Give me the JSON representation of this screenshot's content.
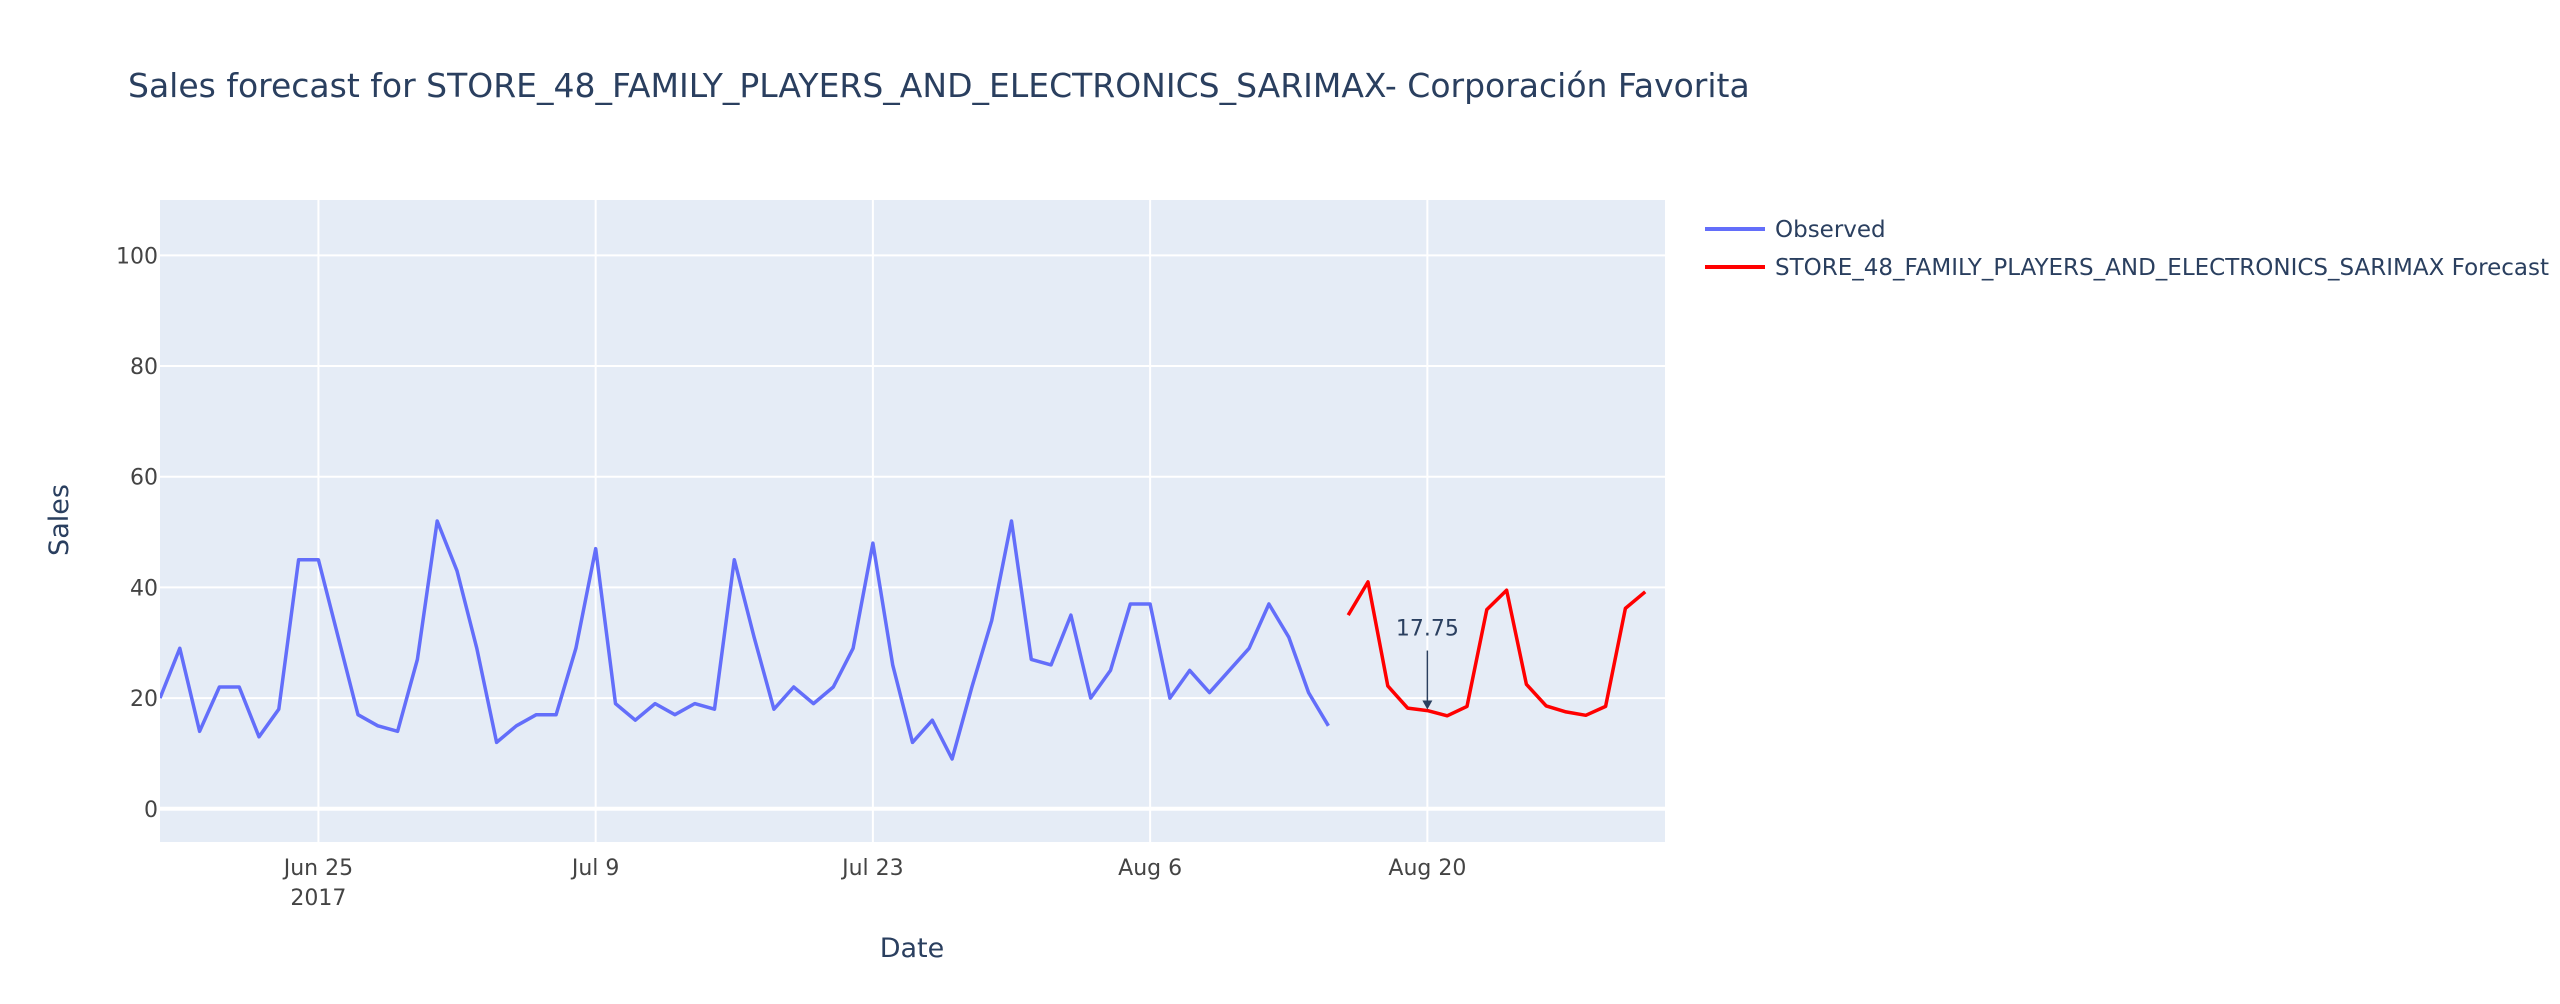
{
  "chart_data": {
    "type": "line",
    "title": "Sales forecast for STORE_48_FAMILY_PLAYERS_AND_ELECTRONICS_SARIMAX- Corporación Favorita",
    "xlabel": "Date",
    "ylabel": "Sales",
    "xlim": [
      "2017-06-17",
      "2017-09-01"
    ],
    "ylim": [
      -6,
      110
    ],
    "x_ticks": [
      {
        "date": "2017-06-25",
        "label": "Jun 25",
        "sublabel": "2017"
      },
      {
        "date": "2017-07-09",
        "label": "Jul 9",
        "sublabel": ""
      },
      {
        "date": "2017-07-23",
        "label": "Jul 23",
        "sublabel": ""
      },
      {
        "date": "2017-08-06",
        "label": "Aug 6",
        "sublabel": ""
      },
      {
        "date": "2017-08-20",
        "label": "Aug 20",
        "sublabel": ""
      }
    ],
    "y_ticks": [
      0,
      20,
      40,
      60,
      80,
      100
    ],
    "grid": true,
    "legend_position": "right",
    "plot_background": "#e5ecf6",
    "series": [
      {
        "name": "Observed",
        "color": "#636efa",
        "start_date": "2017-06-17",
        "values": [
          20,
          29,
          14,
          22,
          22,
          13,
          18,
          45,
          45,
          31,
          17,
          15,
          14,
          27,
          52,
          43,
          29,
          12,
          15,
          17,
          17,
          29,
          47,
          19,
          16,
          19,
          17,
          19,
          18,
          45,
          31,
          18,
          22,
          19,
          22,
          29,
          48,
          26,
          12,
          16,
          9,
          22,
          34,
          52,
          27,
          26,
          35,
          20,
          25,
          37,
          37,
          20,
          25,
          21,
          25,
          29,
          37,
          31,
          21,
          15
        ]
      },
      {
        "name": "STORE_48_FAMILY_PLAYERS_AND_ELECTRONICS_SARIMAX Forecast",
        "color": "#ff0000",
        "start_date": "2017-08-16",
        "values": [
          35,
          41,
          22.2,
          18.2,
          17.75,
          16.8,
          18.5,
          36,
          39.5,
          22.5,
          18.6,
          17.5,
          16.9,
          18.5,
          36.2,
          39.2
        ]
      }
    ],
    "annotations": [
      {
        "text": "17.75",
        "date": "2017-08-20",
        "value": 17.75,
        "arrow": true
      }
    ]
  }
}
